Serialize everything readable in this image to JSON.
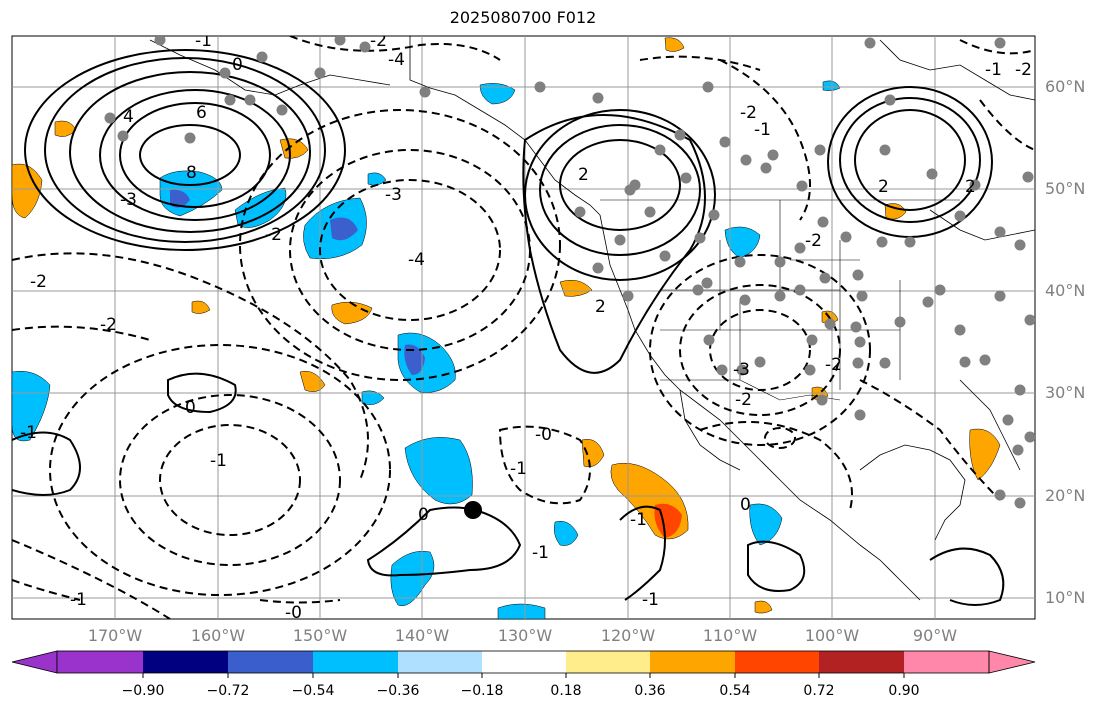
{
  "title": "2025080700 F012",
  "map": {
    "latitude_labels": [
      "60°N",
      "50°N",
      "40°N",
      "30°N",
      "20°N",
      "10°N"
    ],
    "longitude_labels": [
      "170°W",
      "160°W",
      "150°W",
      "140°W",
      "130°W",
      "120°W",
      "110°W",
      "100°W",
      "90°W"
    ],
    "contour_labels": [
      "0",
      "4",
      "6",
      "8",
      "-3",
      "-4",
      "-2",
      "-1",
      "-2",
      "-3",
      "-2",
      "-4",
      "-2",
      "-1",
      "2",
      "-2",
      "-3",
      "-2",
      "-1",
      "-1",
      "0",
      "-1",
      "-2",
      "-0",
      "-1",
      "-0",
      "2",
      "0",
      "-1",
      "0",
      "-1",
      "-1",
      "2",
      "-1",
      "2",
      "-2",
      "-2"
    ],
    "colors": {
      "fill_blue": "#00bfff",
      "fill_light_blue": "#a6e1ff",
      "fill_dark_blue": "#3b5fcc",
      "fill_orange": "#ffa500",
      "fill_yellow": "#ffec8b",
      "fill_red_orange": "#ff4500",
      "station_dot": "#808080",
      "marker": "#000000"
    }
  },
  "colorbar": {
    "tick_labels": [
      "−0.90",
      "−0.72",
      "−0.54",
      "−0.36",
      "−0.18",
      "0.18",
      "0.36",
      "0.54",
      "0.72",
      "0.90"
    ],
    "colors": [
      "#9933cc",
      "#000080",
      "#3a5fcd",
      "#00bfff",
      "#afe0ff",
      "#ffffff",
      "#ffec8b",
      "#ffa500",
      "#ff4500",
      "#b22222",
      "#ff88aa"
    ]
  }
}
